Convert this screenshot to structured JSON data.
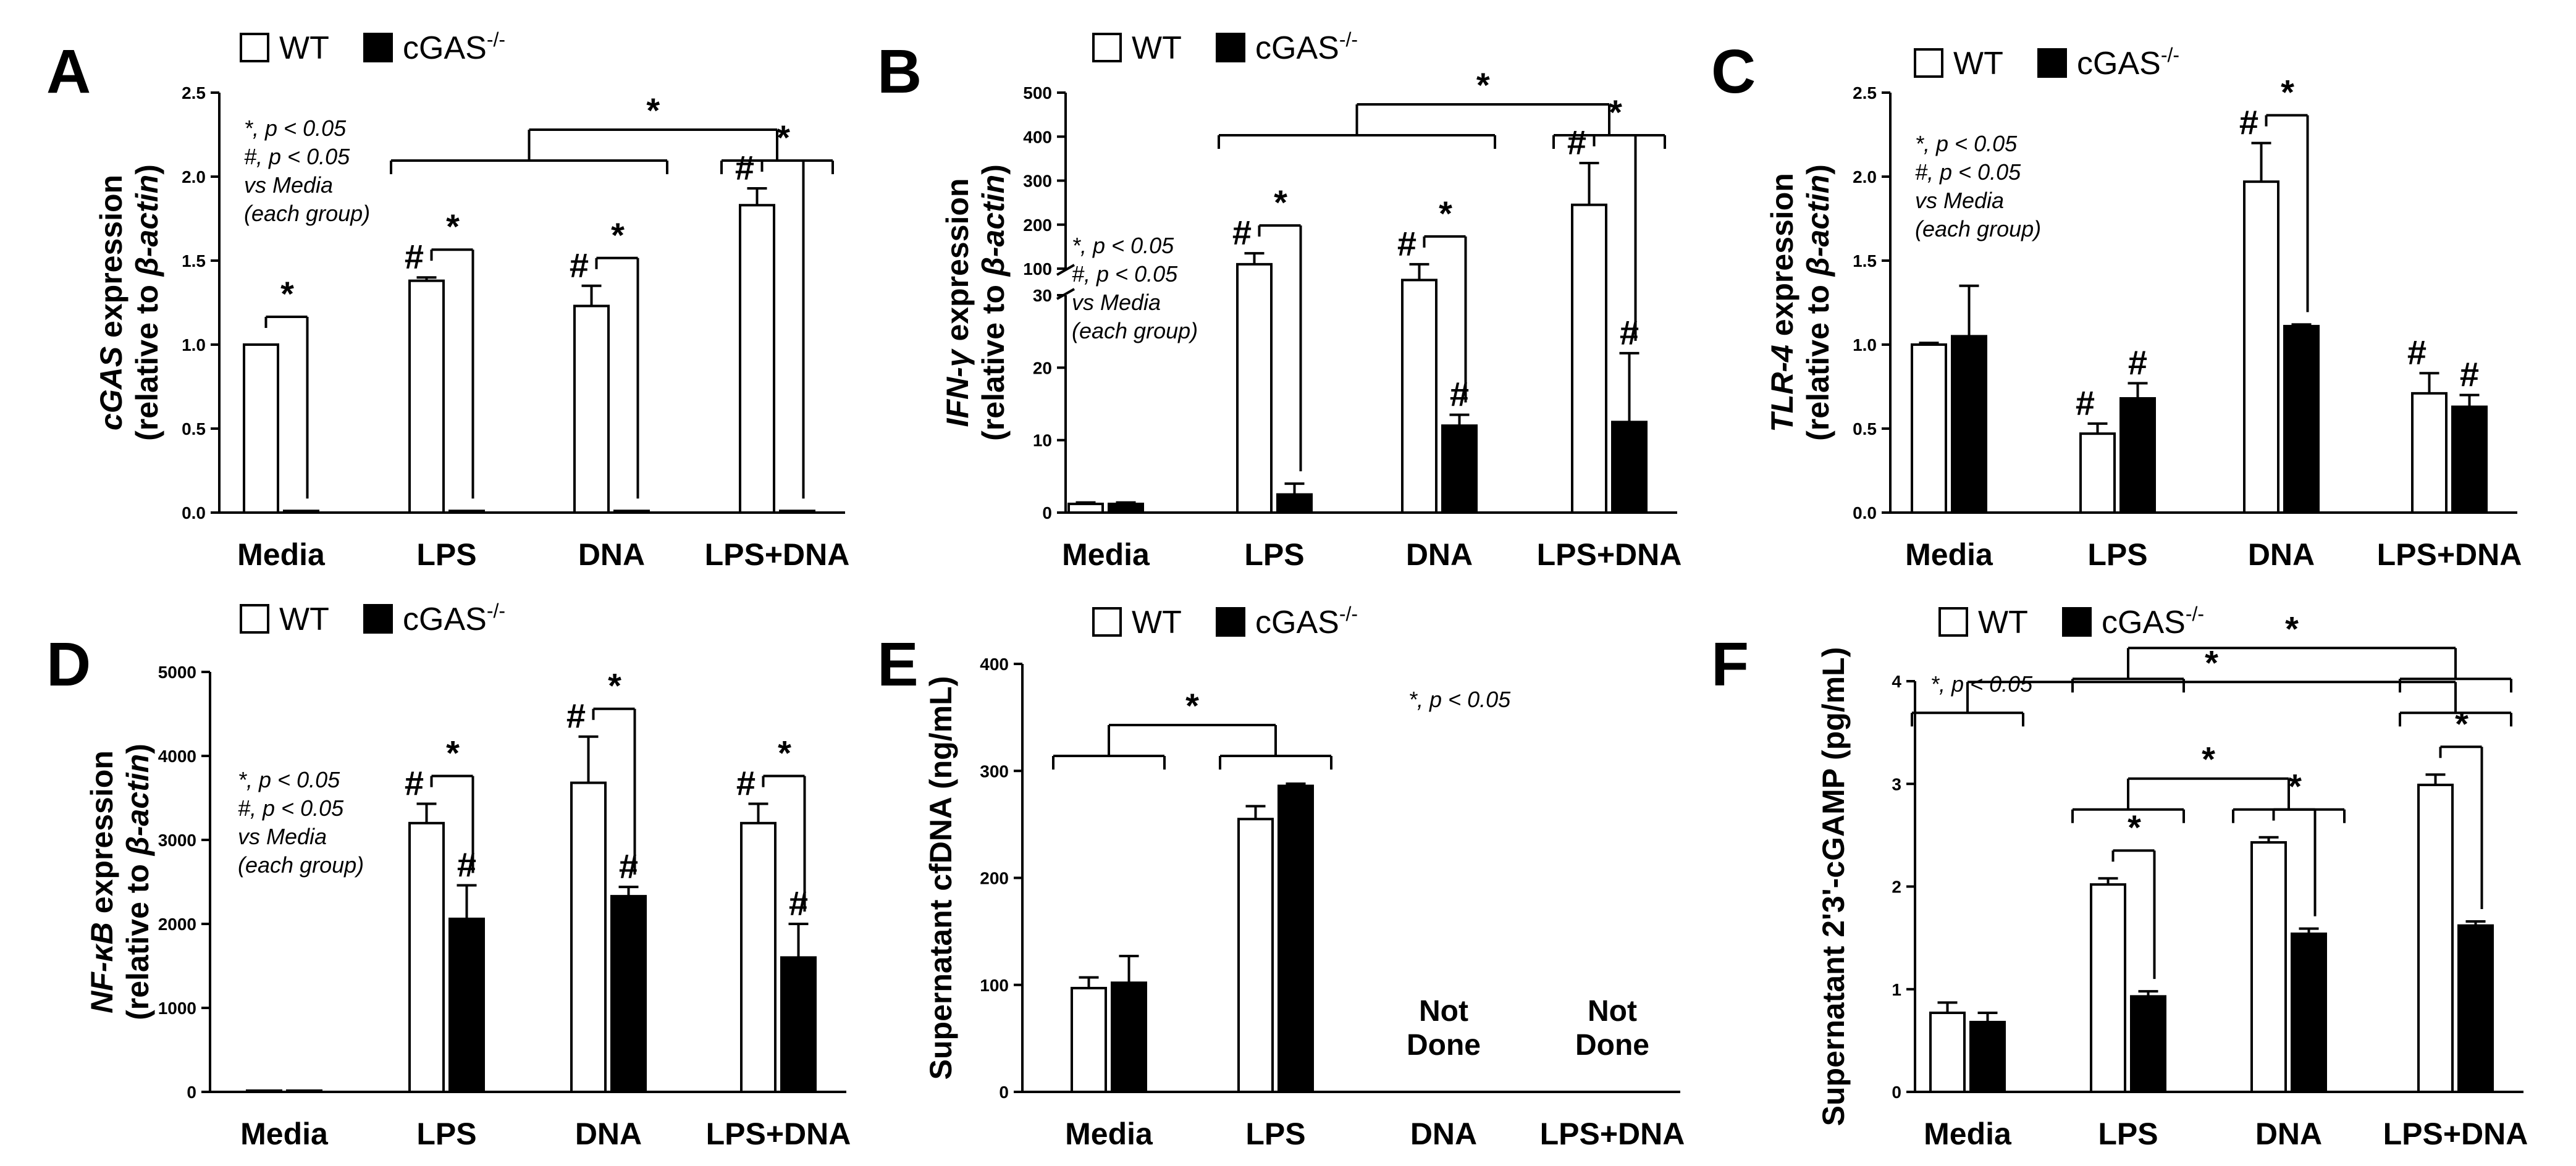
{
  "legend": {
    "wt": "WT",
    "ko": "cGAS",
    "ko_sup": "-/-"
  },
  "colors": {
    "wt": "#ffffff",
    "ko": "#000000",
    "line": "#000000"
  },
  "chart_data": [
    {
      "panel": "A",
      "type": "bar",
      "categories": [
        "Media",
        "LPS",
        "DNA",
        "LPS+DNA"
      ],
      "ylabel_top": [
        {
          "t": "cGAS",
          "i": true
        },
        {
          "t": " expression",
          "i": false
        }
      ],
      "ylabel_bottom": [
        {
          "t": "(relative to ",
          "i": false
        },
        {
          "t": "β-actin",
          "i": true
        },
        {
          "t": ")",
          "i": false
        }
      ],
      "ylim": [
        0,
        2.5
      ],
      "yticks": [
        0,
        0.5,
        1.0,
        1.5,
        2.0,
        2.5
      ],
      "yticklabels": [
        "0.0",
        "0.5",
        "1.0",
        "1.5",
        "2.0",
        "2.5"
      ],
      "series": [
        {
          "name": "WT",
          "values": [
            1.0,
            1.38,
            1.23,
            1.83
          ],
          "err": [
            0.0,
            0.02,
            0.12,
            0.1
          ]
        },
        {
          "name": "cGAS-/-",
          "values": [
            0.01,
            0.01,
            0.01,
            0.01
          ],
          "err": [
            0,
            0,
            0,
            0
          ]
        }
      ],
      "notes": [
        "*, p < 0.05",
        "#, p < 0.05",
        "vs Media",
        "(each group)"
      ],
      "hash": {
        "wt": [
          false,
          true,
          true,
          true
        ],
        "ko": [
          false,
          false,
          false,
          false
        ]
      },
      "star_within": [
        true,
        true,
        true,
        true
      ],
      "brackets": [
        {
          "label": "*",
          "left": [
            1,
            2
          ],
          "right": [
            3,
            3
          ]
        }
      ]
    },
    {
      "panel": "B",
      "type": "bar",
      "categories": [
        "Media",
        "LPS",
        "DNA",
        "LPS+DNA"
      ],
      "ylabel_top": [
        {
          "t": "IFN-γ",
          "i": true
        },
        {
          "t": " expression",
          "i": false
        }
      ],
      "ylabel_bottom": [
        {
          "t": "(relative to ",
          "i": false
        },
        {
          "t": "β-actin",
          "i": true
        },
        {
          "t": ")",
          "i": false
        }
      ],
      "broken": true,
      "yticks_low": [
        0,
        10,
        20,
        30
      ],
      "yticks_high": [
        100,
        200,
        300,
        400,
        500
      ],
      "series": [
        {
          "name": "WT",
          "values": [
            1.2,
            110,
            70,
            245
          ],
          "err": [
            0.2,
            25,
            40,
            95
          ]
        },
        {
          "name": "cGAS-/-",
          "values": [
            1.2,
            2.5,
            12,
            12.5
          ],
          "err": [
            0.2,
            1.5,
            1.5,
            9.5
          ]
        }
      ],
      "notes": [
        "*, p < 0.05",
        "#, p < 0.05",
        "vs Media",
        "(each group)"
      ],
      "hash": {
        "wt": [
          false,
          true,
          true,
          true
        ],
        "ko": [
          false,
          false,
          true,
          true
        ]
      },
      "star_within": [
        false,
        true,
        true,
        true
      ],
      "brackets": [
        {
          "label": "*",
          "left": [
            1,
            2
          ],
          "right": [
            3,
            3
          ]
        }
      ]
    },
    {
      "panel": "C",
      "type": "bar",
      "categories": [
        "Media",
        "LPS",
        "DNA",
        "LPS+DNA"
      ],
      "ylabel_top": [
        {
          "t": "TLR-4",
          "i": true
        },
        {
          "t": " expression",
          "i": false
        }
      ],
      "ylabel_bottom": [
        {
          "t": "(relative to ",
          "i": false
        },
        {
          "t": "β-actin",
          "i": true
        },
        {
          "t": ")",
          "i": false
        }
      ],
      "ylim": [
        0,
        2.5
      ],
      "yticks": [
        0,
        0.5,
        1.0,
        1.5,
        2.0,
        2.5
      ],
      "yticklabels": [
        "0.0",
        "0.5",
        "1.0",
        "1.5",
        "2.0",
        "2.5"
      ],
      "series": [
        {
          "name": "WT",
          "values": [
            1.0,
            0.47,
            1.97,
            0.71
          ],
          "err": [
            0.01,
            0.06,
            0.23,
            0.12
          ]
        },
        {
          "name": "cGAS-/-",
          "values": [
            1.05,
            0.68,
            1.11,
            0.63
          ],
          "err": [
            0.3,
            0.09,
            0.01,
            0.07
          ]
        }
      ],
      "notes": [
        "*, p < 0.05",
        "#, p < 0.05",
        "vs Media",
        "(each group)"
      ],
      "hash": {
        "wt": [
          false,
          true,
          true,
          true
        ],
        "ko": [
          false,
          true,
          false,
          true
        ]
      },
      "star_within": [
        false,
        false,
        true,
        false
      ],
      "brackets": []
    },
    {
      "panel": "D",
      "type": "bar",
      "categories": [
        "Media",
        "LPS",
        "DNA",
        "LPS+DNA"
      ],
      "ylabel_top": [
        {
          "t": "NF-κB",
          "i": true
        },
        {
          "t": " expression",
          "i": false
        }
      ],
      "ylabel_bottom": [
        {
          "t": "(relative to ",
          "i": false
        },
        {
          "t": "β-actin",
          "i": true
        },
        {
          "t": ")",
          "i": false
        }
      ],
      "ylim": [
        0,
        5000
      ],
      "yticks": [
        0,
        1000,
        2000,
        3000,
        4000,
        5000
      ],
      "yticklabels": [
        "0",
        "1000",
        "2000",
        "3000",
        "4000",
        "5000"
      ],
      "series": [
        {
          "name": "WT",
          "values": [
            0,
            3200,
            3680,
            3200
          ],
          "err": [
            0,
            230,
            550,
            230
          ]
        },
        {
          "name": "cGAS-/-",
          "values": [
            0,
            2060,
            2330,
            1600
          ],
          "err": [
            0,
            400,
            110,
            400
          ]
        }
      ],
      "notes": [
        "*, p < 0.05",
        "#, p < 0.05",
        "vs Media",
        "(each group)"
      ],
      "hash": {
        "wt": [
          false,
          true,
          true,
          true
        ],
        "ko": [
          false,
          true,
          true,
          true
        ]
      },
      "star_within": [
        false,
        true,
        true,
        true
      ],
      "brackets": []
    },
    {
      "panel": "E",
      "type": "bar",
      "categories": [
        "Media",
        "LPS",
        "DNA",
        "LPS+DNA"
      ],
      "ylabel_top": [],
      "ylabel_bottom": [
        {
          "t": "Supernatant cfDNA (ng/mL)",
          "i": false
        }
      ],
      "ylim": [
        0,
        400
      ],
      "yticks": [
        0,
        100,
        200,
        300,
        400
      ],
      "yticklabels": [
        "0",
        "100",
        "200",
        "300",
        "400"
      ],
      "series": [
        {
          "name": "WT",
          "values": [
            97,
            255,
            null,
            null
          ],
          "err": [
            10,
            12,
            0,
            0
          ]
        },
        {
          "name": "cGAS-/-",
          "values": [
            102,
            286,
            null,
            null
          ],
          "err": [
            25,
            2,
            0,
            0
          ]
        }
      ],
      "notes": [
        "*, p < 0.05"
      ],
      "not_done": {
        "line1": "Not",
        "line2": "Done",
        "cats": [
          2,
          3
        ]
      },
      "hash": {
        "wt": [
          false,
          false,
          false,
          false
        ],
        "ko": [
          false,
          false,
          false,
          false
        ]
      },
      "star_within": [
        false,
        false,
        false,
        false
      ],
      "brackets": [
        {
          "label": "*",
          "left": [
            0,
            0
          ],
          "right": [
            1,
            1
          ]
        }
      ]
    },
    {
      "panel": "F",
      "type": "bar",
      "categories": [
        "Media",
        "LPS",
        "DNA",
        "LPS+DNA"
      ],
      "ylabel_top": [],
      "ylabel_bottom": [
        {
          "t": "Supernatant 2'3'-cGAMP (pg/mL)",
          "i": false
        }
      ],
      "ylim": [
        0,
        4
      ],
      "yticks": [
        0,
        1,
        2,
        3,
        4
      ],
      "yticklabels": [
        "0",
        "1",
        "2",
        "3",
        "4"
      ],
      "series": [
        {
          "name": "WT",
          "values": [
            0.77,
            2.02,
            2.43,
            2.99
          ],
          "err": [
            0.1,
            0.06,
            0.05,
            0.1
          ]
        },
        {
          "name": "cGAS-/-",
          "values": [
            0.68,
            0.93,
            1.54,
            1.62
          ],
          "err": [
            0.09,
            0.05,
            0.05,
            0.04
          ]
        }
      ],
      "notes": [
        "*, p < 0.05"
      ],
      "hash": {
        "wt": [
          false,
          false,
          false,
          false
        ],
        "ko": [
          false,
          false,
          false,
          false
        ]
      },
      "star_within": [
        false,
        true,
        true,
        true
      ],
      "brackets": [
        {
          "label": "*",
          "left": [
            1,
            1
          ],
          "right": [
            2,
            2
          ]
        },
        {
          "label": "*",
          "left": [
            0,
            0
          ],
          "right": [
            3,
            3
          ]
        },
        {
          "label": "*",
          "left": [
            1,
            1
          ],
          "right": [
            3,
            3
          ]
        }
      ]
    }
  ]
}
